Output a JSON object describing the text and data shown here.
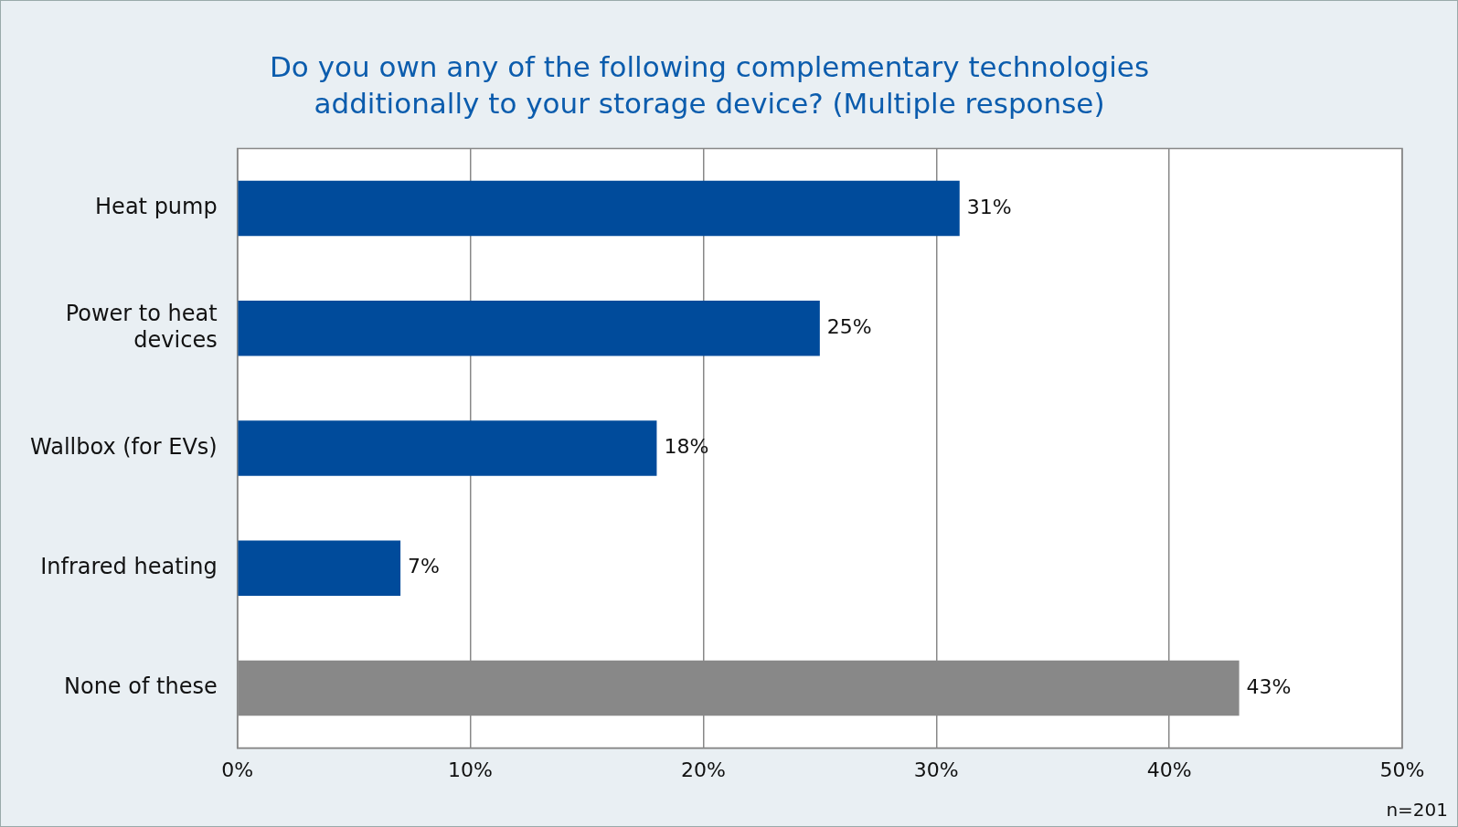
{
  "chart_data": {
    "type": "bar",
    "orientation": "horizontal",
    "title": "Do you own any of the following complementary technologies additionally to your storage device? (Multiple response)",
    "categories": [
      "Heat pump",
      "Power to heat devices",
      "Wallbox (for EVs)",
      "Infrared heating",
      "None of these"
    ],
    "values": [
      31,
      25,
      18,
      7,
      43
    ],
    "colors": [
      "#004b9b",
      "#004b9b",
      "#004b9b",
      "#004b9b",
      "#888888"
    ],
    "value_labels": [
      "31%",
      "25%",
      "18%",
      "7%",
      "43%"
    ],
    "xlim": [
      0,
      50
    ],
    "xticks": [
      {
        "value": 0,
        "label": "0%"
      },
      {
        "value": 10,
        "label": "10%"
      },
      {
        "value": 20,
        "label": "20%"
      },
      {
        "value": 30,
        "label": "30%"
      },
      {
        "value": 40,
        "label": "40%"
      },
      {
        "value": 50,
        "label": "50%"
      }
    ],
    "grid": "x",
    "legend": false,
    "annotations": [
      "n=201"
    ]
  }
}
